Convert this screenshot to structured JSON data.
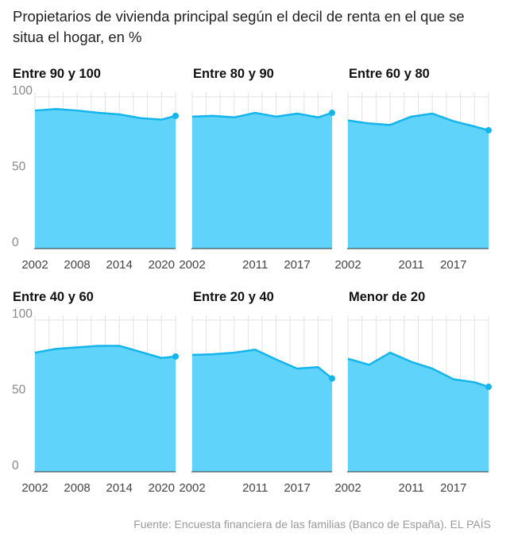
{
  "title": "Propietarios de vivienda principal según el decil de renta en el que se situa el hogar, en %",
  "source": "Fuente: Encuesta financiera de las familias (Banco de España). EL PAÍS",
  "colors": {
    "area": "#5fd3fa",
    "line": "#14b4ec",
    "grid": "#e3e3e3",
    "axis": "#333333",
    "tick": "#888888"
  },
  "chart_data": [
    {
      "type": "area",
      "title": "Entre 90 y 100",
      "x": [
        2002,
        2005,
        2008,
        2011,
        2014,
        2017,
        2020,
        2022
      ],
      "values": [
        91,
        92,
        91,
        89.5,
        88.5,
        86,
        85,
        87.5
      ],
      "ylim": [
        0,
        100
      ],
      "yticks": [
        "0",
        "50",
        "100"
      ],
      "xticks": [
        "2002",
        "2008",
        "2014",
        "2020"
      ],
      "grid": true
    },
    {
      "type": "area",
      "title": "Entre 80 y 90",
      "x": [
        2002,
        2005,
        2008,
        2011,
        2014,
        2017,
        2020,
        2022
      ],
      "values": [
        87,
        87.5,
        86.5,
        89.5,
        87,
        89,
        86.5,
        89.5
      ],
      "ylim": [
        0,
        100
      ],
      "xticks": [
        "2002",
        "2011",
        "2017"
      ],
      "grid": true
    },
    {
      "type": "area",
      "title": "Entre 60 y 80",
      "x": [
        2002,
        2005,
        2008,
        2011,
        2014,
        2017,
        2020,
        2022
      ],
      "values": [
        84.5,
        82.5,
        81.5,
        87,
        89,
        84,
        80.5,
        78
      ],
      "ylim": [
        0,
        100
      ],
      "xticks": [
        "2002",
        "2011",
        "2017"
      ],
      "grid": true
    },
    {
      "type": "area",
      "title": "Entre 40 y 60",
      "x": [
        2002,
        2005,
        2008,
        2011,
        2014,
        2017,
        2020,
        2022
      ],
      "values": [
        78.5,
        81,
        82,
        83,
        83,
        79,
        75,
        76
      ],
      "ylim": [
        0,
        100
      ],
      "yticks": [
        "0",
        "50",
        "100"
      ],
      "xticks": [
        "2002",
        "2008",
        "2014",
        "2020"
      ],
      "grid": true
    },
    {
      "type": "area",
      "title": "Entre 20 y 40",
      "x": [
        2002,
        2005,
        2008,
        2011,
        2014,
        2017,
        2020,
        2022
      ],
      "values": [
        77,
        77.5,
        78.5,
        80.5,
        74,
        68,
        69,
        61.5
      ],
      "ylim": [
        0,
        100
      ],
      "xticks": [
        "2002",
        "2011",
        "2017"
      ],
      "grid": true
    },
    {
      "type": "area",
      "title": "Menor de 20",
      "x": [
        2002,
        2005,
        2008,
        2011,
        2014,
        2017,
        2020,
        2022
      ],
      "values": [
        74.5,
        70.5,
        78.5,
        72.5,
        68,
        61,
        59,
        56
      ],
      "ylim": [
        0,
        100
      ],
      "xticks": [
        "2002",
        "2011",
        "2017"
      ],
      "grid": true
    }
  ]
}
